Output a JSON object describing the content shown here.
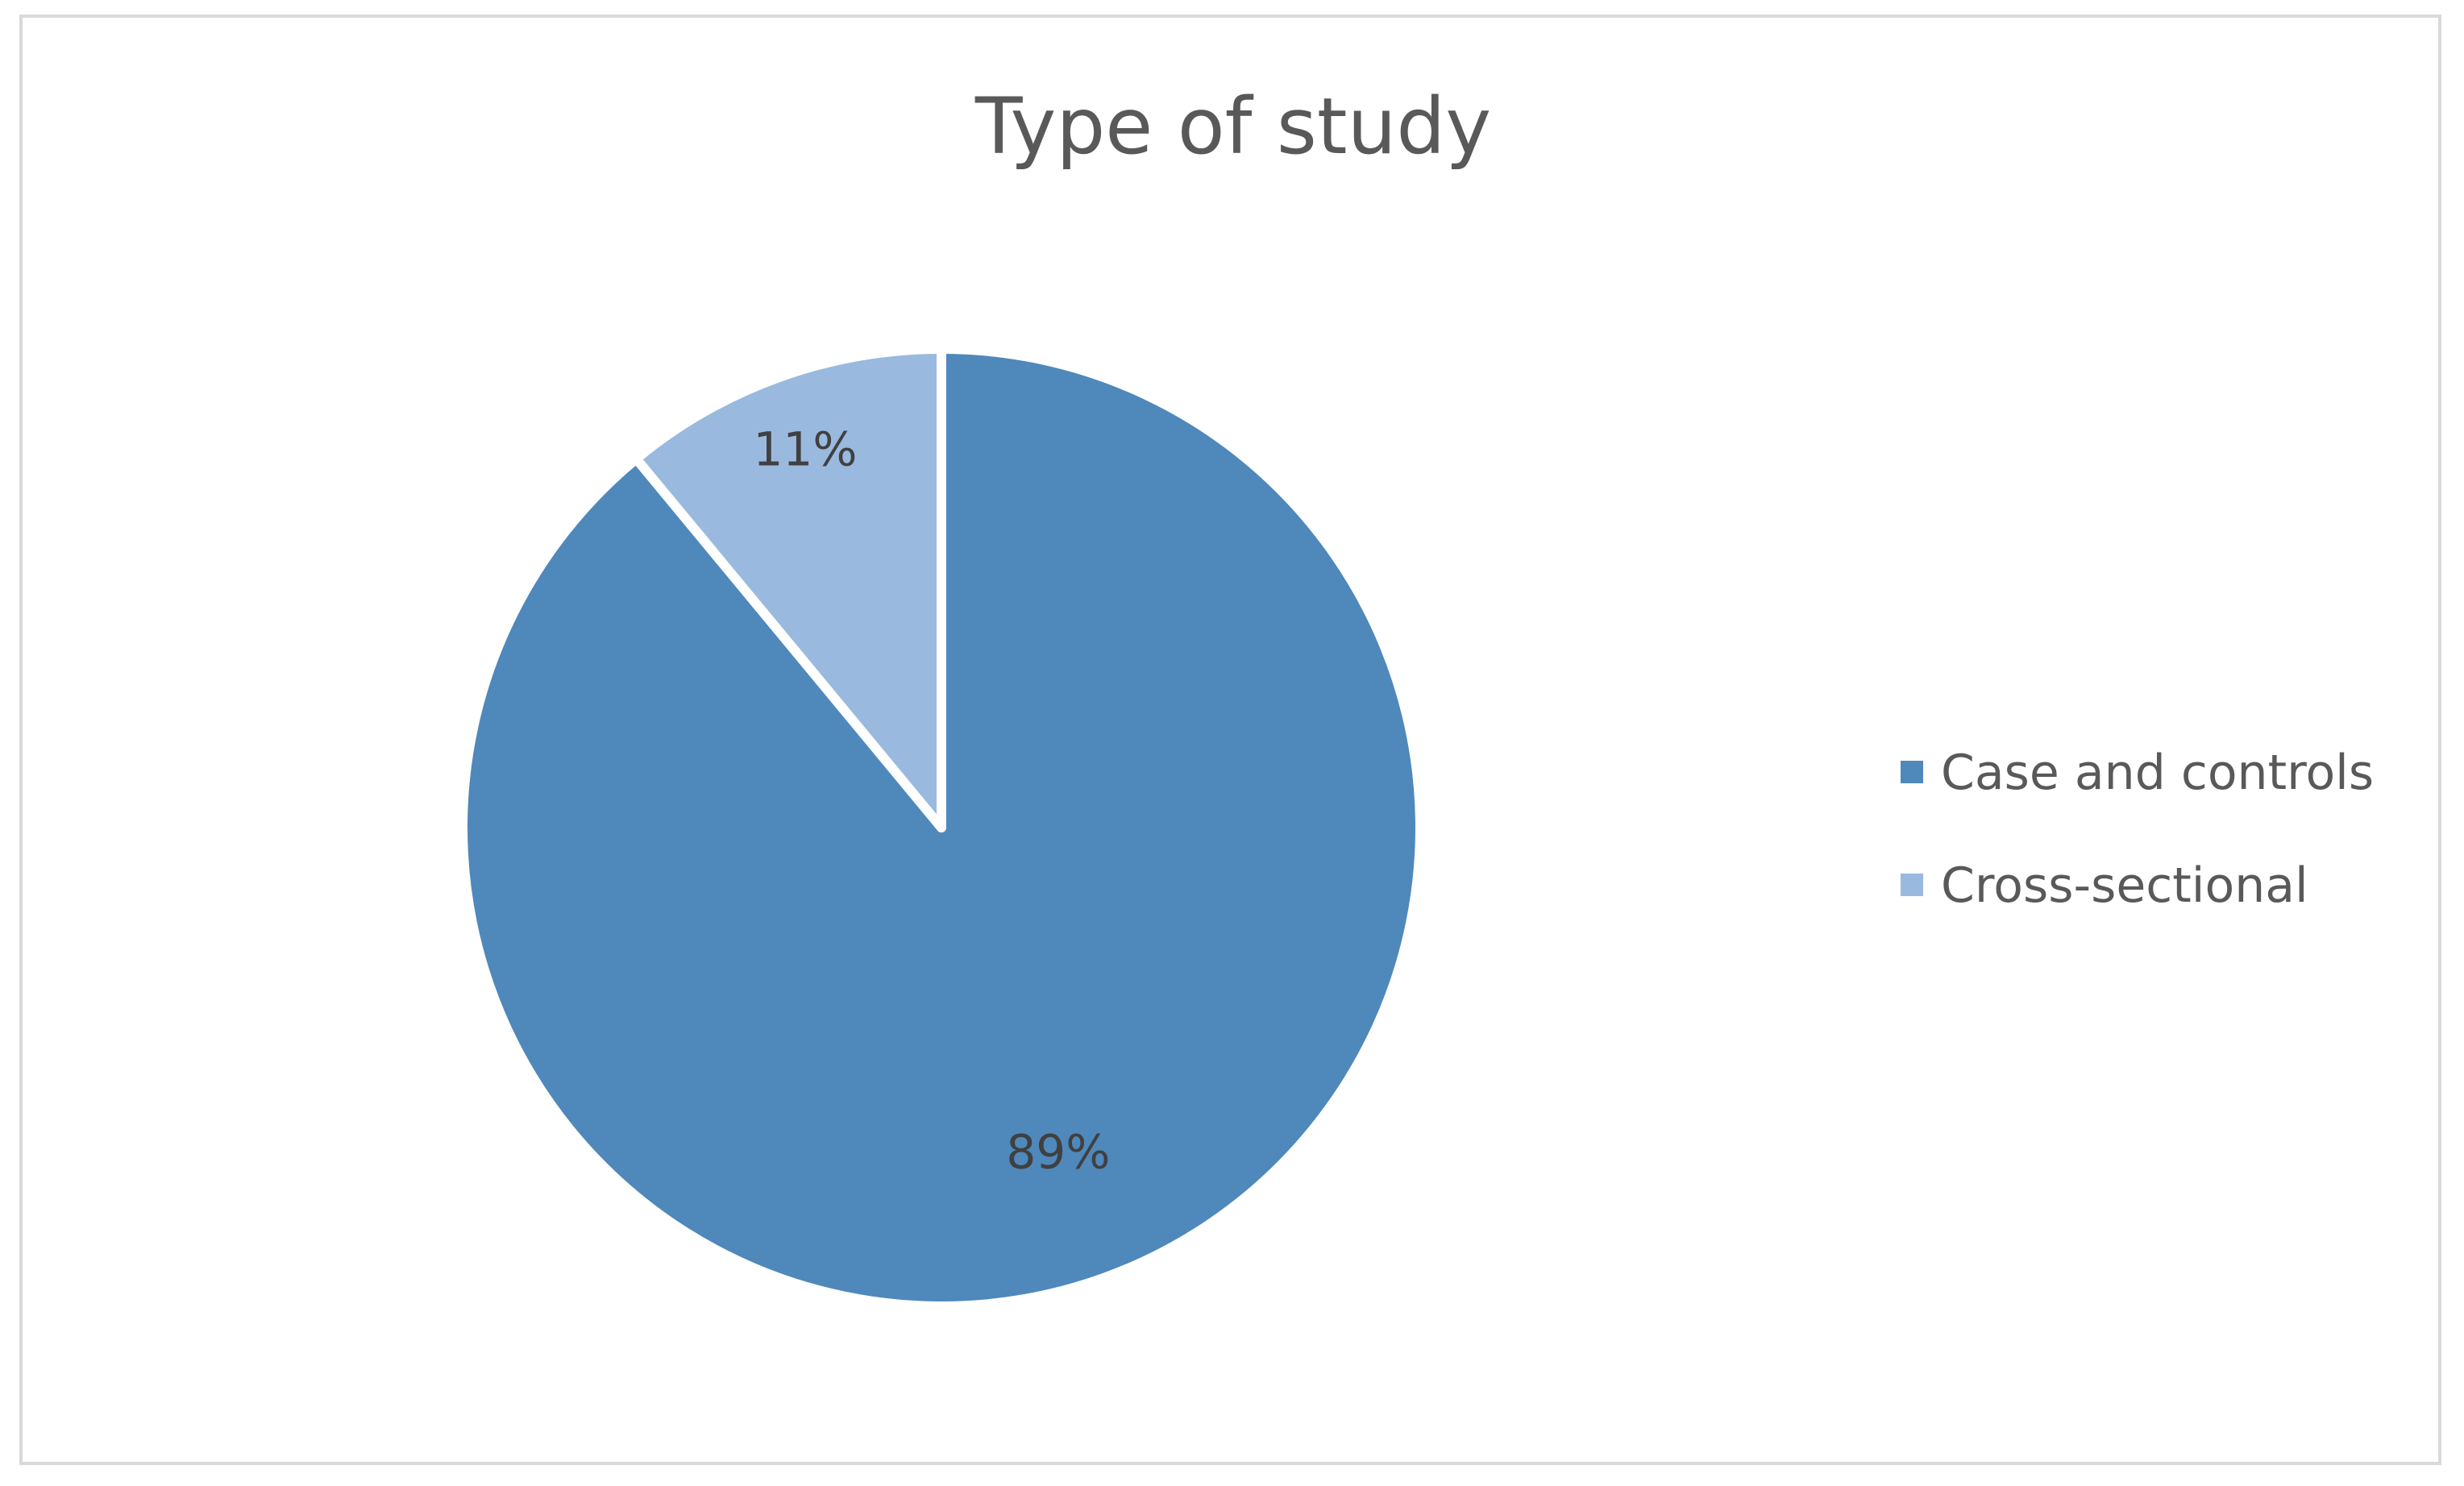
{
  "chart_data": {
    "type": "pie",
    "title": "Type of study",
    "categories": [
      "Case and controls",
      "Cross-sectional"
    ],
    "values": [
      89,
      11
    ],
    "data_labels": [
      "89%",
      "11%"
    ],
    "colors": [
      "#4f88bb",
      "#9ab9df"
    ],
    "slice_border_color": "#ffffff",
    "legend": {
      "placement": "right",
      "entries": [
        "Case and controls",
        "Cross-sectional"
      ]
    },
    "start_angle": "12 o'clock",
    "direction": "clockwise"
  }
}
